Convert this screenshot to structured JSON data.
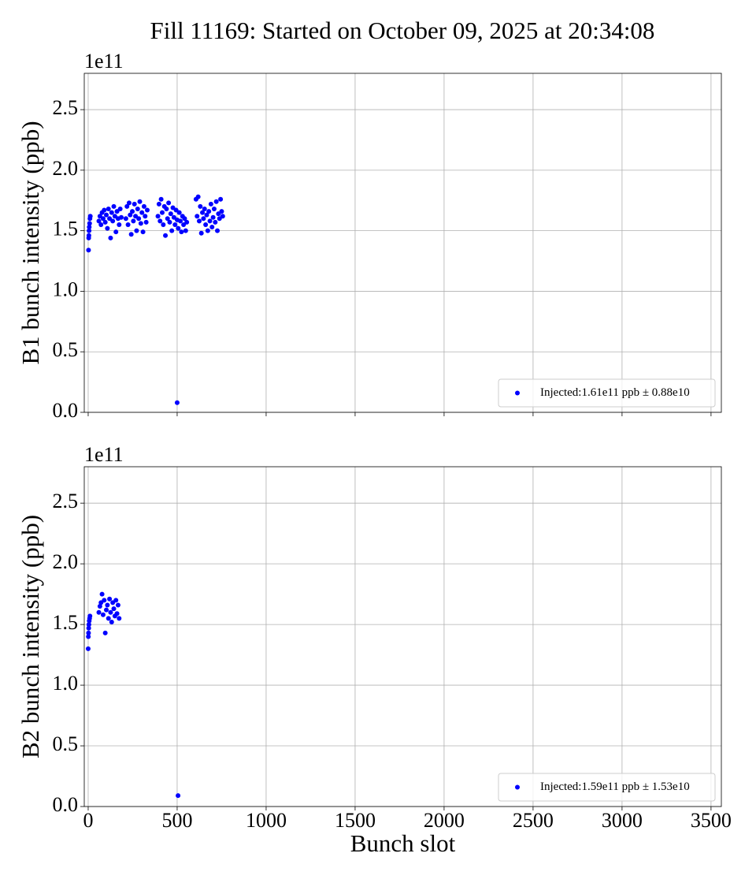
{
  "title": "Fill 11169: Started on October 09, 2025 at 20:34:08",
  "chart_data": [
    {
      "type": "scatter",
      "ylabel": "B1 bunch intensity (ppb)",
      "offset_label": "1e11",
      "xlim": [
        -22,
        3558
      ],
      "ylim": [
        0,
        2.8
      ],
      "xticks": [
        0,
        500,
        1000,
        1500,
        2000,
        2500,
        3000,
        3500
      ],
      "xtick_labels": false,
      "yticks": [
        {
          "value": 0,
          "label": "0.0"
        },
        0.5,
        {
          "value": 1,
          "label": "1.0"
        },
        1.5,
        {
          "value": 2,
          "label": "2.0"
        },
        2.5
      ],
      "grid": true,
      "legend": "lower right",
      "series": [
        {
          "name": "Injected:1.61e11 ppb ± 0.88e10",
          "color": "#0000ff",
          "x": [
            2,
            3,
            4,
            5,
            6,
            8,
            10,
            12,
            60,
            66,
            72,
            78,
            84,
            90,
            96,
            102,
            108,
            114,
            120,
            126,
            132,
            138,
            144,
            150,
            156,
            162,
            168,
            174,
            180,
            186,
            212,
            218,
            224,
            230,
            236,
            242,
            248,
            254,
            260,
            266,
            272,
            278,
            284,
            290,
            296,
            302,
            308,
            314,
            320,
            326,
            332,
            392,
            398,
            404,
            410,
            416,
            422,
            428,
            434,
            440,
            446,
            452,
            458,
            464,
            470,
            476,
            482,
            488,
            494,
            500,
            506,
            512,
            518,
            524,
            530,
            536,
            542,
            548,
            554,
            500,
            606,
            612,
            618,
            624,
            630,
            636,
            642,
            648,
            654,
            660,
            666,
            672,
            678,
            684,
            690,
            696,
            702,
            708,
            714,
            720,
            726,
            732,
            738,
            744,
            750,
            756
          ],
          "values": [
            1.34,
            1.44,
            1.46,
            1.5,
            1.53,
            1.56,
            1.6,
            1.62,
            1.58,
            1.62,
            1.55,
            1.65,
            1.6,
            1.67,
            1.57,
            1.63,
            1.52,
            1.68,
            1.6,
            1.44,
            1.65,
            1.58,
            1.7,
            1.62,
            1.49,
            1.66,
            1.6,
            1.55,
            1.68,
            1.61,
            1.6,
            1.7,
            1.55,
            1.73,
            1.63,
            1.47,
            1.66,
            1.58,
            1.72,
            1.62,
            1.5,
            1.68,
            1.6,
            1.74,
            1.56,
            1.65,
            1.49,
            1.7,
            1.62,
            1.57,
            1.67,
            1.62,
            1.72,
            1.58,
            1.76,
            1.65,
            1.55,
            1.7,
            1.46,
            1.68,
            1.6,
            1.73,
            1.57,
            1.64,
            1.5,
            1.69,
            1.61,
            1.55,
            1.67,
            1.59,
            1.52,
            1.65,
            1.58,
            1.49,
            1.62,
            1.55,
            1.6,
            1.5,
            1.57,
            0.08,
            1.76,
            1.62,
            1.78,
            1.58,
            1.7,
            1.48,
            1.65,
            1.6,
            1.68,
            1.55,
            1.63,
            1.5,
            1.66,
            1.58,
            1.72,
            1.53,
            1.61,
            1.68,
            1.57,
            1.74,
            1.5,
            1.64,
            1.6,
            1.76,
            1.66,
            1.62
          ]
        }
      ]
    },
    {
      "type": "scatter",
      "ylabel": "B2 bunch intensity (ppb)",
      "xlabel": "Bunch slot",
      "offset_label": "1e11",
      "xlim": [
        -22,
        3558
      ],
      "ylim": [
        0,
        2.8
      ],
      "xticks": [
        0,
        500,
        1000,
        1500,
        2000,
        2500,
        3000,
        3500
      ],
      "xtick_labels": true,
      "yticks": [
        {
          "value": 0,
          "label": "0.0"
        },
        0.5,
        {
          "value": 1,
          "label": "1.0"
        },
        1.5,
        {
          "value": 2,
          "label": "2.0"
        },
        2.5
      ],
      "grid": true,
      "legend": "lower right",
      "series": [
        {
          "name": "Injected:1.59e11 ppb ± 1.53e10",
          "color": "#0000ff",
          "x": [
            0,
            1,
            2,
            3,
            4,
            6,
            8,
            10,
            60,
            66,
            72,
            78,
            84,
            90,
            96,
            102,
            108,
            114,
            120,
            126,
            132,
            138,
            144,
            150,
            156,
            162,
            168,
            174,
            505
          ],
          "values": [
            1.3,
            1.4,
            1.43,
            1.47,
            1.5,
            1.53,
            1.55,
            1.57,
            1.6,
            1.65,
            1.68,
            1.75,
            1.58,
            1.7,
            1.43,
            1.62,
            1.66,
            1.55,
            1.71,
            1.6,
            1.52,
            1.68,
            1.63,
            1.57,
            1.7,
            1.59,
            1.66,
            1.55,
            0.09
          ]
        }
      ]
    }
  ]
}
